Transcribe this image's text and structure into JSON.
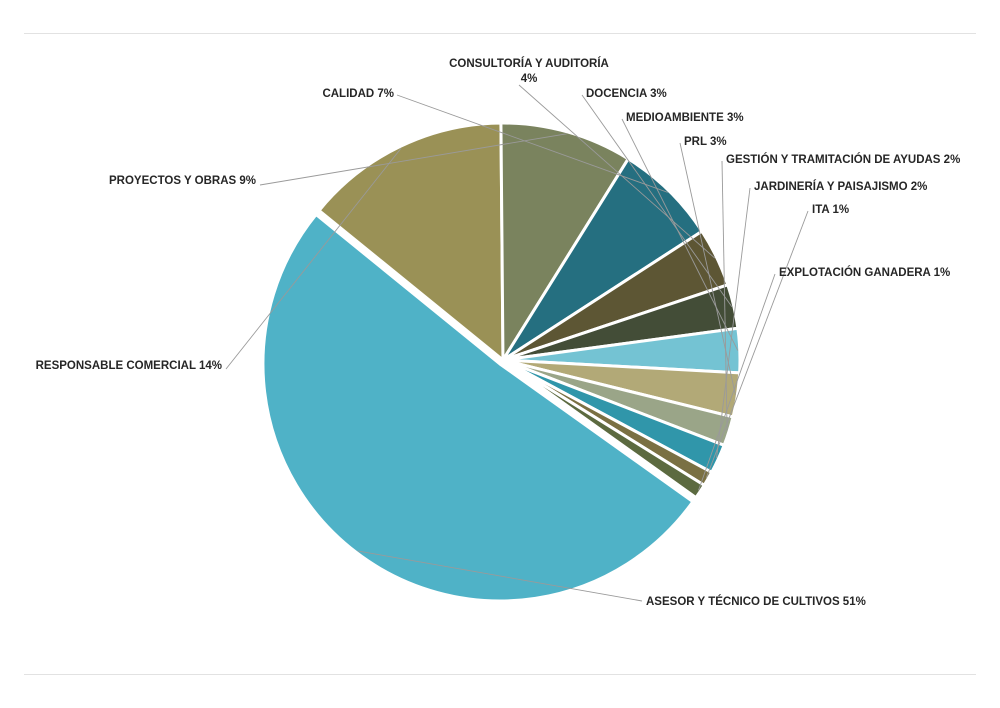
{
  "chart_data": {
    "type": "pie",
    "title": "",
    "slices": [
      {
        "label": "ASESOR Y TÉCNICO DE CULTIVOS",
        "pct_text": "51%",
        "value": 51,
        "color": "#4FB2C7"
      },
      {
        "label": "RESPONSABLE COMERCIAL",
        "pct_text": "14%",
        "value": 14,
        "color": "#9A9156"
      },
      {
        "label": "PROYECTOS Y OBRAS",
        "pct_text": "9%",
        "value": 9,
        "color": "#7A835E"
      },
      {
        "label": "CALIDAD",
        "pct_text": "7%",
        "value": 7,
        "color": "#256F80"
      },
      {
        "label": "CONSULTORÍA Y AUDITORÍA",
        "pct_text": "4%",
        "value": 4,
        "color": "#5D5634"
      },
      {
        "label": "DOCENCIA",
        "pct_text": "3%",
        "value": 3,
        "color": "#434D37"
      },
      {
        "label": "MEDIOAMBIENTE",
        "pct_text": "3%",
        "value": 3,
        "color": "#74C3D3"
      },
      {
        "label": "PRL",
        "pct_text": "3%",
        "value": 3,
        "color": "#B2A977"
      },
      {
        "label": "GESTIÓN Y TRAMITACIÓN DE AYUDAS",
        "pct_text": "2%",
        "value": 2,
        "color": "#9AA588"
      },
      {
        "label": "JARDINERÍA Y PAISAJISMO",
        "pct_text": "2%",
        "value": 2,
        "color": "#3096AA"
      },
      {
        "label": "ITA",
        "pct_text": "1%",
        "value": 1,
        "color": "#7A7043"
      },
      {
        "label": "EXPLOTACIÓN GANADERA",
        "pct_text": "1%",
        "value": 1,
        "color": "#5C6A40"
      }
    ]
  }
}
